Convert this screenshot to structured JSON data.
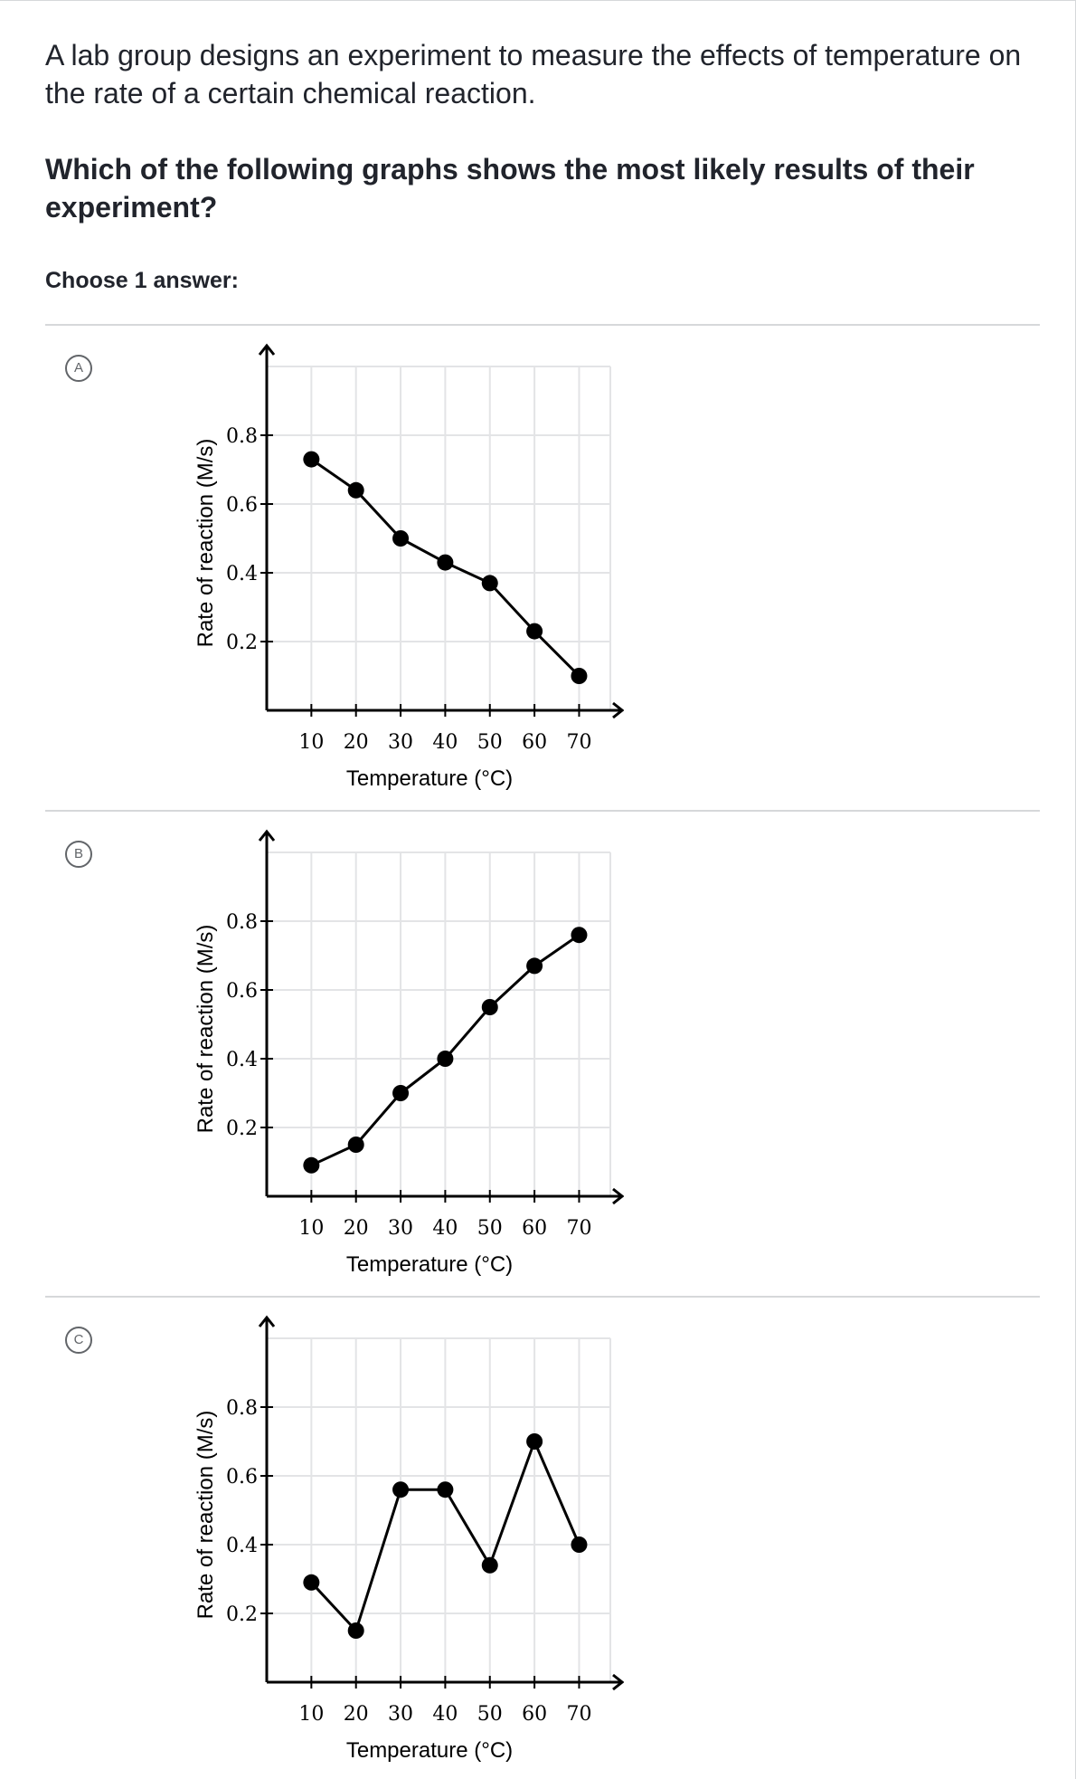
{
  "question": {
    "stem": "A lab group designs an experiment to measure the effects of temperature on the rate of a certain chemical reaction.",
    "prompt": "Which of the following graphs shows the most likely results of their experiment?",
    "choose_label": "Choose 1 answer:"
  },
  "choices": [
    {
      "letter": "A"
    },
    {
      "letter": "B"
    },
    {
      "letter": "C"
    }
  ],
  "chart_data": [
    {
      "type": "line",
      "xlabel": "Temperature (°C)",
      "ylabel": "Rate of reaction (M/s)",
      "x": [
        10,
        20,
        30,
        40,
        50,
        60,
        70
      ],
      "x_ticks": [
        "10",
        "20",
        "30",
        "40",
        "50",
        "60",
        "70"
      ],
      "y_ticks": [
        "0.2",
        "0.4",
        "0.6",
        "0.8"
      ],
      "values": [
        0.73,
        0.64,
        0.5,
        0.43,
        0.37,
        0.23,
        0.1
      ],
      "xlim": [
        0,
        77
      ],
      "ylim": [
        0,
        1.0
      ],
      "grid": true
    },
    {
      "type": "line",
      "xlabel": "Temperature (°C)",
      "ylabel": "Rate of reaction (M/s)",
      "x": [
        10,
        20,
        30,
        40,
        50,
        60,
        70
      ],
      "x_ticks": [
        "10",
        "20",
        "30",
        "40",
        "50",
        "60",
        "70"
      ],
      "y_ticks": [
        "0.2",
        "0.4",
        "0.6",
        "0.8"
      ],
      "values": [
        0.09,
        0.15,
        0.3,
        0.4,
        0.55,
        0.67,
        0.76
      ],
      "xlim": [
        0,
        77
      ],
      "ylim": [
        0,
        1.0
      ],
      "grid": true
    },
    {
      "type": "line",
      "xlabel": "Temperature (°C)",
      "ylabel": "Rate of reaction (M/s)",
      "x": [
        10,
        20,
        30,
        40,
        50,
        60,
        70
      ],
      "x_ticks": [
        "10",
        "20",
        "30",
        "40",
        "50",
        "60",
        "70"
      ],
      "y_ticks": [
        "0.2",
        "0.4",
        "0.6",
        "0.8"
      ],
      "values": [
        0.29,
        0.15,
        0.56,
        0.56,
        0.34,
        0.7,
        0.4
      ],
      "xlim": [
        0,
        77
      ],
      "ylim": [
        0,
        1.0
      ],
      "grid": true
    }
  ]
}
